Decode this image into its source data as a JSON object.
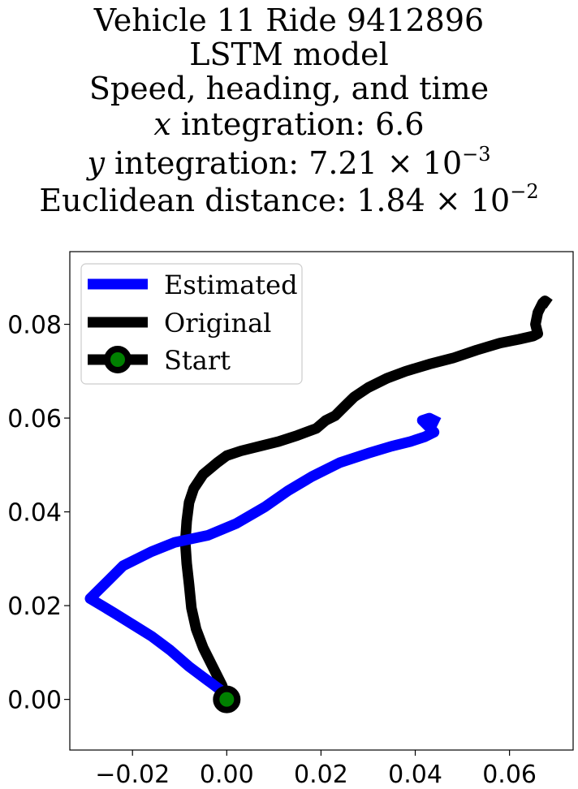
{
  "title_lines": {
    "line1": "Vehicle 11 Ride 9412896",
    "line2": "LSTM model",
    "line3": "Speed, heading, and time",
    "line4_var": "x",
    "line4_text": " integration: 6.6",
    "line5_var": "y",
    "line5_text": " integration: 7.21 × 10",
    "line5_exp": "−3",
    "line6_text": "Euclidean distance: 1.84 × 10",
    "line6_exp": "−2"
  },
  "chart_data": {
    "type": "line",
    "xlim": [
      -0.0333,
      0.0735
    ],
    "ylim": [
      -0.0108,
      0.0955
    ],
    "xticks": [
      -0.02,
      0.0,
      0.02,
      0.04,
      0.06
    ],
    "xtick_labels": [
      "−0.02",
      "0.00",
      "0.02",
      "0.04",
      "0.06"
    ],
    "yticks": [
      0.0,
      0.02,
      0.04,
      0.06,
      0.08
    ],
    "ytick_labels": [
      "0.00",
      "0.02",
      "0.04",
      "0.06",
      "0.08"
    ],
    "grid": false,
    "legend_position": "upper-left",
    "series": [
      {
        "name": "Estimated",
        "color": "#0000ff",
        "x": [
          0.0,
          -0.004,
          -0.008,
          -0.012,
          -0.016,
          -0.02,
          -0.024,
          -0.029,
          -0.026,
          -0.022,
          -0.016,
          -0.011,
          -0.004,
          0.002,
          0.008,
          0.013,
          0.018,
          0.024,
          0.03,
          0.035,
          0.039,
          0.042,
          0.044,
          0.0425,
          0.0415,
          0.043,
          0.045
        ],
        "y": [
          0.001,
          0.004,
          0.007,
          0.0105,
          0.0135,
          0.016,
          0.0185,
          0.0215,
          0.0245,
          0.0285,
          0.0315,
          0.0335,
          0.035,
          0.0375,
          0.041,
          0.0445,
          0.0475,
          0.0505,
          0.0525,
          0.054,
          0.055,
          0.056,
          0.057,
          0.0585,
          0.0595,
          0.06,
          0.059
        ]
      },
      {
        "name": "Original",
        "color": "#000000",
        "x": [
          0.0,
          -0.001,
          -0.003,
          -0.005,
          -0.0065,
          -0.0075,
          -0.008,
          -0.0085,
          -0.0088,
          -0.0085,
          -0.008,
          -0.007,
          -0.005,
          -0.002,
          0.0,
          0.003,
          0.007,
          0.011,
          0.015,
          0.019,
          0.021,
          0.023,
          0.025,
          0.027,
          0.03,
          0.034,
          0.038,
          0.043,
          0.048,
          0.053,
          0.058,
          0.062,
          0.065,
          0.066,
          0.0655,
          0.066,
          0.067,
          0.0675,
          0.0685
        ],
        "y": [
          0.0,
          0.003,
          0.007,
          0.011,
          0.015,
          0.0195,
          0.0245,
          0.029,
          0.0335,
          0.038,
          0.042,
          0.045,
          0.048,
          0.0505,
          0.052,
          0.053,
          0.054,
          0.055,
          0.0563,
          0.0578,
          0.0595,
          0.0605,
          0.0625,
          0.0645,
          0.0665,
          0.0685,
          0.07,
          0.0715,
          0.0728,
          0.0745,
          0.076,
          0.0768,
          0.0775,
          0.078,
          0.08,
          0.0825,
          0.0845,
          0.085,
          0.0843
        ]
      },
      {
        "name": "Start",
        "color": "#000000",
        "marker_face": "#008000",
        "x": [
          0.0
        ],
        "y": [
          0.0
        ]
      }
    ]
  }
}
